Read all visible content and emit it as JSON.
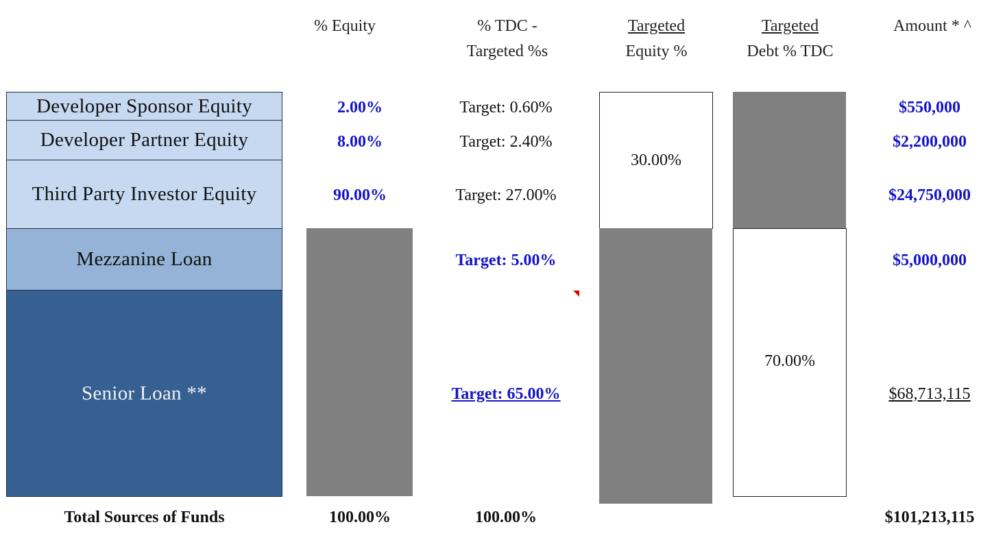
{
  "headers": {
    "equity_pct": "% Equity",
    "tdc_line1": "% TDC -",
    "tdc_line2": "Targeted %s",
    "teq_line1": "Targeted",
    "teq_line2": "Equity %",
    "tdebt_line1": "Targeted",
    "tdebt_line2": "Debt % TDC",
    "amount": "Amount * ^"
  },
  "rows": [
    {
      "label": "Developer Sponsor Equity",
      "equity": "2.00%",
      "target": "Target: 0.60%",
      "amount": "$550,000"
    },
    {
      "label": "Developer Partner Equity",
      "equity": "8.00%",
      "target": "Target: 2.40%",
      "amount": "$2,200,000"
    },
    {
      "label": "Third Party Investor Equity",
      "equity": "90.00%",
      "target": "Target: 27.00%",
      "amount": "$24,750,000"
    },
    {
      "label": "Mezzanine Loan",
      "target": "Target: 5.00%",
      "amount": "$5,000,000"
    },
    {
      "label": "Senior Loan **",
      "target": "Target: 65.00%",
      "amount": "$68,713,115"
    }
  ],
  "targeted_equity_pct": "30.00%",
  "targeted_debt_pct": "70.00%",
  "totals": {
    "label": "Total Sources of Funds",
    "equity": "100.00%",
    "tdc": "100.00%",
    "amount": "$101,213,115"
  },
  "colors": {
    "equity_fill": "#c6d9f1",
    "mezz_fill": "#95b3d7",
    "senior_fill": "#366092",
    "grey_block": "#808080",
    "input_blue": "#1414c8"
  }
}
